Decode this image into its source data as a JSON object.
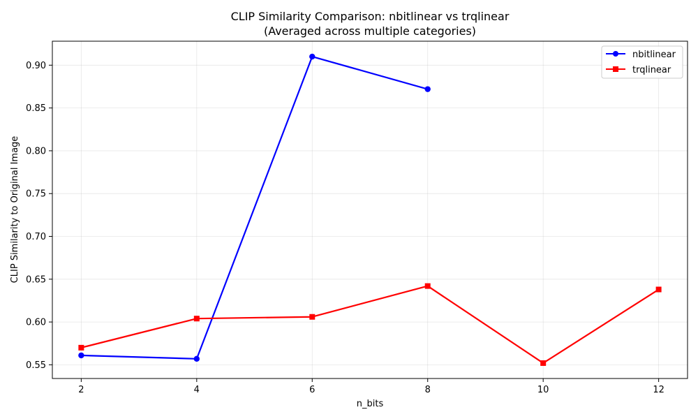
{
  "chart_data": {
    "type": "line",
    "title": "CLIP Similarity Comparison: nbitlinear vs trqlinear",
    "subtitle": "(Averaged across multiple categories)",
    "xlabel": "n_bits",
    "ylabel": "CLIP Similarity to Original Image",
    "xlim": [
      1.5,
      12.5
    ],
    "ylim": [
      0.534,
      0.928
    ],
    "xticks": [
      2,
      4,
      6,
      8,
      10,
      12
    ],
    "yticks": [
      0.55,
      0.6,
      0.65,
      0.7,
      0.75,
      0.8,
      0.85,
      0.9
    ],
    "ytick_labels": [
      "0.55",
      "0.60",
      "0.65",
      "0.70",
      "0.75",
      "0.80",
      "0.85",
      "0.90"
    ],
    "grid": true,
    "legend_position": "top-right",
    "series": [
      {
        "name": "nbitlinear",
        "color": "#0000ff",
        "marker": "circle",
        "x": [
          2,
          4,
          6,
          8
        ],
        "y": [
          0.561,
          0.557,
          0.91,
          0.872
        ]
      },
      {
        "name": "trqlinear",
        "color": "#ff0000",
        "marker": "square",
        "x": [
          2,
          4,
          6,
          8,
          10,
          12
        ],
        "y": [
          0.57,
          0.604,
          0.606,
          0.642,
          0.552,
          0.638
        ]
      }
    ]
  }
}
